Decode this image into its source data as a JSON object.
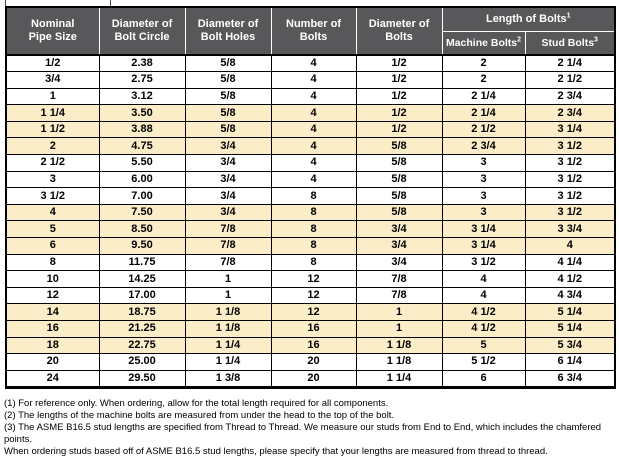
{
  "colors": {
    "header_bg": "#58585A",
    "header_text": "#FFFFFF",
    "highlight_row": "#FCEDC9",
    "grid_border": "#000000"
  },
  "table": {
    "title_columns": [
      {
        "line1": "Nominal",
        "line2": "Pipe Size"
      },
      {
        "line1": "Diameter of",
        "line2": "Bolt Circle"
      },
      {
        "line1": "Diameter of",
        "line2": "Bolt Holes"
      },
      {
        "line1": "Number of",
        "line2": "Bolts"
      },
      {
        "line1": "Diameter of",
        "line2": "Bolts"
      }
    ],
    "length_group": {
      "label": "Length of Bolts",
      "sup": "1"
    },
    "sub_columns": [
      {
        "label": "Machine Bolts",
        "sup": "2"
      },
      {
        "label": "Stud Bolts",
        "sup": "3"
      }
    ],
    "rows": [
      {
        "size": "1/2",
        "circle": "2.38",
        "holes": "5/8",
        "num": "4",
        "dia": "1/2",
        "machine": "2",
        "stud": "2 1/4",
        "highlight": false
      },
      {
        "size": "3/4",
        "circle": "2.75",
        "holes": "5/8",
        "num": "4",
        "dia": "1/2",
        "machine": "2",
        "stud": "2 1/2",
        "highlight": false
      },
      {
        "size": "1",
        "circle": "3.12",
        "holes": "5/8",
        "num": "4",
        "dia": "1/2",
        "machine": "2 1/4",
        "stud": "2 3/4",
        "highlight": false
      },
      {
        "size": "1 1/4",
        "circle": "3.50",
        "holes": "5/8",
        "num": "4",
        "dia": "1/2",
        "machine": "2 1/4",
        "stud": "2 3/4",
        "highlight": true
      },
      {
        "size": "1 1/2",
        "circle": "3.88",
        "holes": "5/8",
        "num": "4",
        "dia": "1/2",
        "machine": "2 1/2",
        "stud": "3 1/4",
        "highlight": true
      },
      {
        "size": "2",
        "circle": "4.75",
        "holes": "3/4",
        "num": "4",
        "dia": "5/8",
        "machine": "2 3/4",
        "stud": "3 1/2",
        "highlight": true
      },
      {
        "size": "2 1/2",
        "circle": "5.50",
        "holes": "3/4",
        "num": "4",
        "dia": "5/8",
        "machine": "3",
        "stud": "3 1/2",
        "highlight": false
      },
      {
        "size": "3",
        "circle": "6.00",
        "holes": "3/4",
        "num": "4",
        "dia": "5/8",
        "machine": "3",
        "stud": "3 1/2",
        "highlight": false
      },
      {
        "size": "3 1/2",
        "circle": "7.00",
        "holes": "3/4",
        "num": "8",
        "dia": "5/8",
        "machine": "3",
        "stud": "3 1/2",
        "highlight": false
      },
      {
        "size": "4",
        "circle": "7.50",
        "holes": "3/4",
        "num": "8",
        "dia": "5/8",
        "machine": "3",
        "stud": "3 1/2",
        "highlight": true
      },
      {
        "size": "5",
        "circle": "8.50",
        "holes": "7/8",
        "num": "8",
        "dia": "3/4",
        "machine": "3 1/4",
        "stud": "3 3/4",
        "highlight": true
      },
      {
        "size": "6",
        "circle": "9.50",
        "holes": "7/8",
        "num": "8",
        "dia": "3/4",
        "machine": "3 1/4",
        "stud": "4",
        "highlight": true
      },
      {
        "size": "8",
        "circle": "11.75",
        "holes": "7/8",
        "num": "8",
        "dia": "3/4",
        "machine": "3 1/2",
        "stud": "4 1/4",
        "highlight": false
      },
      {
        "size": "10",
        "circle": "14.25",
        "holes": "1",
        "num": "12",
        "dia": "7/8",
        "machine": "4",
        "stud": "4 1/2",
        "highlight": false
      },
      {
        "size": "12",
        "circle": "17.00",
        "holes": "1",
        "num": "12",
        "dia": "7/8",
        "machine": "4",
        "stud": "4 3/4",
        "highlight": false
      },
      {
        "size": "14",
        "circle": "18.75",
        "holes": "1 1/8",
        "num": "12",
        "dia": "1",
        "machine": "4 1/2",
        "stud": "5 1/4",
        "highlight": true
      },
      {
        "size": "16",
        "circle": "21.25",
        "holes": "1 1/8",
        "num": "16",
        "dia": "1",
        "machine": "4 1/2",
        "stud": "5 1/4",
        "highlight": true
      },
      {
        "size": "18",
        "circle": "22.75",
        "holes": "1 1/4",
        "num": "16",
        "dia": "1 1/8",
        "machine": "5",
        "stud": "5 3/4",
        "highlight": true
      },
      {
        "size": "20",
        "circle": "25.00",
        "holes": "1 1/4",
        "num": "20",
        "dia": "1 1/8",
        "machine": "5 1/2",
        "stud": "6 1/4",
        "highlight": false
      },
      {
        "size": "24",
        "circle": "29.50",
        "holes": "1 3/8",
        "num": "20",
        "dia": "1 1/4",
        "machine": "6",
        "stud": "6 3/4",
        "highlight": false
      }
    ]
  },
  "footnotes": [
    "(1) For reference only. When ordering, allow for the total length required for all components.",
    "(2) The lengths of the machine bolts are measured from under the head to the top of the bolt.",
    "(3) The ASME B16.5 stud lengths are specified from Thread to Thread. We measure our studs from End to End, which includes the chamfered points.",
    "When ordering studs based off of ASME B16.5 stud lengths, please specify that your lengths are measured from thread to thread."
  ]
}
